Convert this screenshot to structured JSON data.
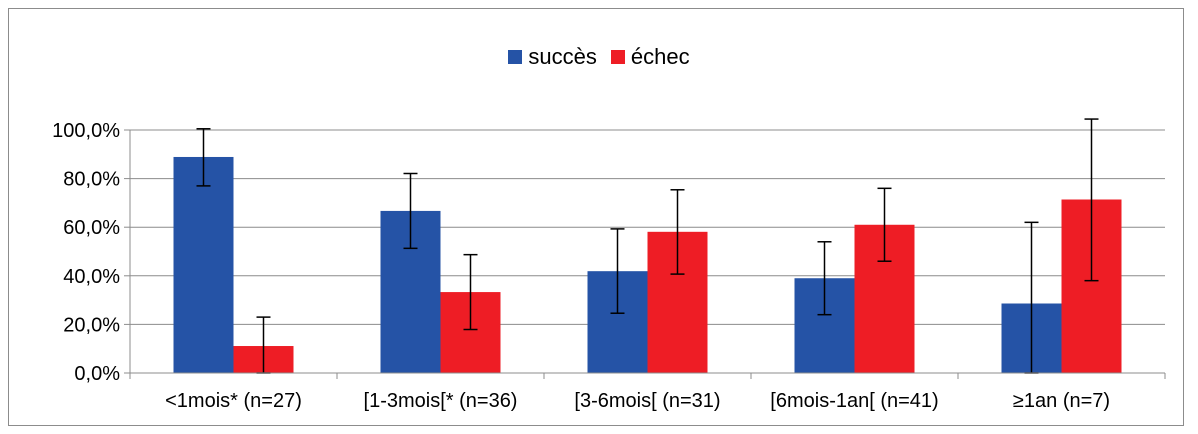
{
  "chart_data": {
    "type": "bar",
    "categories": [
      "<1mois* (n=27)",
      "[1-3mois[* (n=36)",
      "[3-6mois[ (n=31)",
      "[6mois-1an[ (n=41)",
      "≥1an (n=7)"
    ],
    "series": [
      {
        "name": "succès",
        "color": "#2553a6",
        "values": [
          88.9,
          66.7,
          41.9,
          39.0,
          28.6
        ],
        "error": [
          [
            77.0,
            100.5
          ],
          [
            51.3,
            82.1
          ],
          [
            24.6,
            59.3
          ],
          [
            24.0,
            54.0
          ],
          [
            0.0,
            62.0
          ]
        ]
      },
      {
        "name": "échec",
        "color": "#ee1d25",
        "values": [
          11.1,
          33.3,
          58.1,
          61.0,
          71.4
        ],
        "error": [
          [
            0.0,
            23.0
          ],
          [
            17.9,
            48.7
          ],
          [
            40.7,
            75.4
          ],
          [
            46.0,
            76.0
          ],
          [
            38.0,
            104.5
          ]
        ]
      }
    ],
    "y_ticks": [
      "0,0%",
      "20,0%",
      "40,0%",
      "60,0%",
      "80,0%",
      "100,0%"
    ],
    "ylim": [
      0,
      100
    ],
    "grid": true,
    "legend_position": "top-center"
  }
}
